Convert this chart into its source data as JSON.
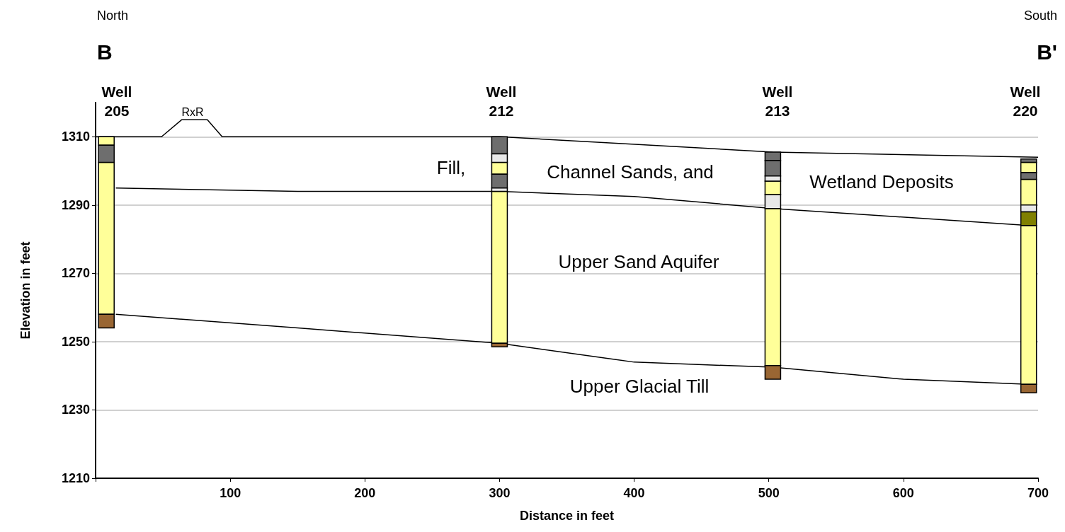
{
  "chart_data": {
    "type": "bar",
    "xlabel": "Distance in feet",
    "ylabel": "Elevation in feet",
    "xlim": [
      0,
      700
    ],
    "xticks": [
      {
        "value": 0,
        "label": null
      },
      100,
      200,
      300,
      400,
      500,
      600,
      700
    ],
    "ylim": [
      1210,
      1320
    ],
    "yticks": [
      1210,
      1230,
      1250,
      1270,
      1290,
      1310
    ],
    "grid": "y",
    "series": [
      {
        "color": "#ffff99",
        "x": [
          8,
          300,
          503,
          693
        ],
        "base": [
          1307.5,
          1299,
          1293,
          1299.5
        ],
        "values": [
          2.5,
          3.5,
          4,
          3
        ]
      },
      {
        "color": "#ffff99",
        "x": [
          8,
          300,
          503,
          693
        ],
        "base": [
          1258,
          1249.5,
          1243,
          1237.5
        ],
        "values": [
          44.5,
          44.5,
          46,
          46.5
        ]
      },
      {
        "color": "#ffff99",
        "x": [
          693
        ],
        "base": [
          1290
        ],
        "values": [
          7.5
        ]
      },
      {
        "color": "#6e6e6e",
        "x": [
          8,
          300,
          503,
          693
        ],
        "base": [
          1302.5,
          1305,
          1303,
          1302.5
        ],
        "values": [
          5,
          5,
          2.5,
          1
        ]
      },
      {
        "color": "#6e6e6e",
        "x": [
          300,
          503,
          693
        ],
        "base": [
          1295,
          1298.5,
          1297.5
        ],
        "values": [
          4,
          4.5,
          2
        ]
      },
      {
        "color": "#e8e8e8",
        "x": [
          300,
          503,
          693
        ],
        "base": [
          1302.5,
          1297,
          1288
        ],
        "values": [
          2.5,
          1.5,
          2
        ]
      },
      {
        "color": "#e8e8e8",
        "x": [
          300,
          503
        ],
        "base": [
          1294,
          1289
        ],
        "values": [
          1,
          4
        ]
      },
      {
        "color": "#808000",
        "x": [
          693
        ],
        "base": [
          1284
        ],
        "values": [
          4
        ]
      },
      {
        "color": "#996633",
        "x": [
          8,
          300,
          503,
          693
        ],
        "base": [
          1254,
          1248.5,
          1239,
          1235
        ],
        "values": [
          4,
          1,
          4,
          2.5
        ]
      },
      {
        "type": "line",
        "color": "#000000",
        "x": [
          0,
          49,
          64,
          83,
          94,
          300,
          503,
          700
        ],
        "values": [
          1310,
          1310,
          1315,
          1315,
          1310,
          1310,
          1305.5,
          1304
        ]
      },
      {
        "type": "line",
        "color": "#000000",
        "x": [
          15,
          150,
          300,
          400,
          503,
          693
        ],
        "values": [
          1295,
          1294,
          1294,
          1292.5,
          1289,
          1284
        ]
      },
      {
        "type": "line",
        "color": "#000000",
        "x": [
          15,
          150,
          300,
          400,
          503,
          600,
          693
        ],
        "values": [
          1258,
          1254,
          1249.5,
          1244,
          1242.5,
          1239,
          1237.5
        ]
      }
    ],
    "annotations": [
      "North",
      "B",
      "South",
      "B'",
      "Well\n205",
      "Well\n212",
      "Well\n213",
      "Well\n220",
      "RxR",
      "Fill,",
      "Channel Sands, and",
      "Wetland Deposits",
      "Upper Sand Aquifer",
      "Upper Glacial Till"
    ]
  }
}
